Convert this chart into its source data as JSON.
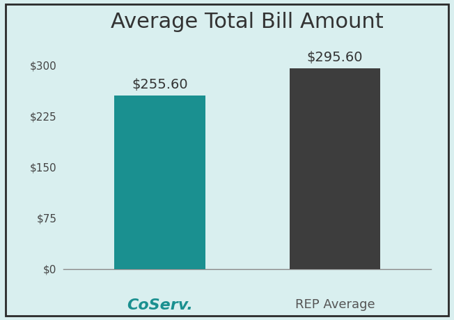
{
  "title": "Average Total Bill Amount",
  "categories": [
    "CoServ.",
    "REP Average"
  ],
  "values": [
    255.6,
    295.6
  ],
  "bar_colors": [
    "#1a9090",
    "#3d3d3d"
  ],
  "value_labels": [
    "$255.60",
    "$295.60"
  ],
  "yticks": [
    0,
    75,
    150,
    225,
    300
  ],
  "ytick_labels": [
    "$0",
    "$75",
    "$150",
    "$225",
    "$300"
  ],
  "ylim": [
    0,
    335
  ],
  "background_color": "#d9efef",
  "border_color": "#2a2a2a",
  "title_fontsize": 22,
  "tick_fontsize": 11,
  "value_label_fontsize": 14,
  "coserv_color": "#1a9090",
  "coserv_label": "CoServ.",
  "rep_label": "REP Average",
  "rep_label_color": "#555555",
  "bar_width": 0.52
}
